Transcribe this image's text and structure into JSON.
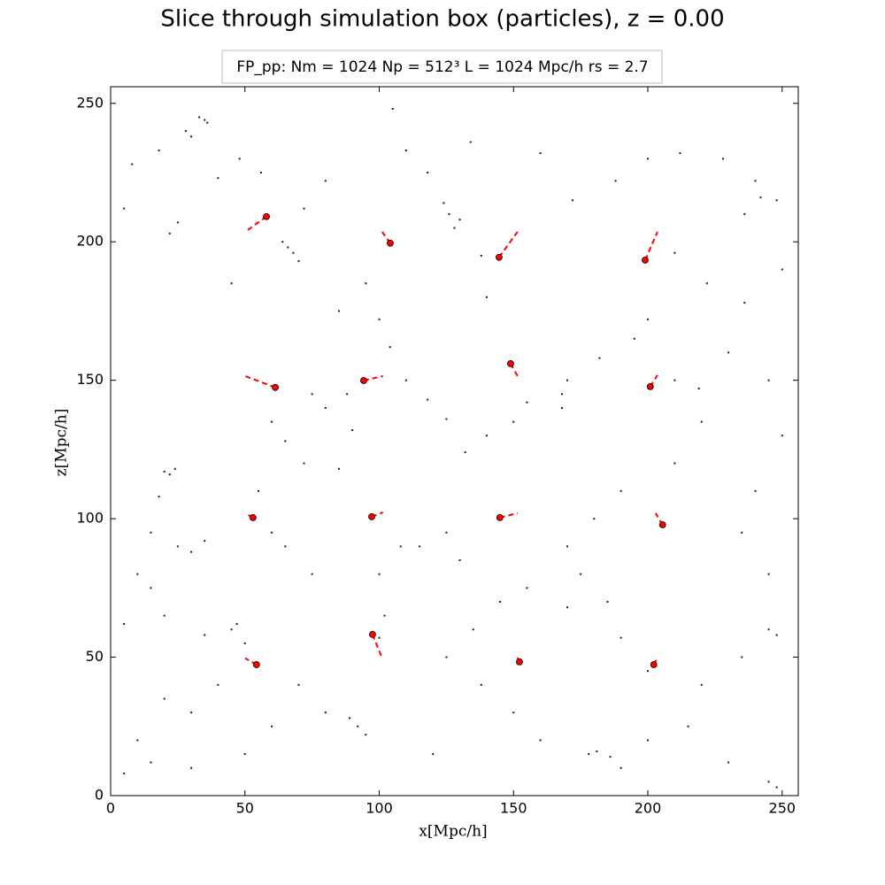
{
  "chart_data": {
    "type": "scatter",
    "title": "Slice through simulation box (particles), z = 0.00",
    "annotation": "FP_pp:  Nm = 1024  Np = 512³   L = 1024 Mpc/h  rs = 2.7",
    "xlabel": "x[Mpc/h]",
    "ylabel": "z[Mpc/h]",
    "xlim": [
      0,
      256
    ],
    "ylim": [
      0,
      256
    ],
    "xticks": [
      0,
      50,
      100,
      150,
      200,
      250
    ],
    "yticks": [
      0,
      50,
      100,
      150,
      200,
      250
    ],
    "grid": false,
    "series": [
      {
        "color": "#1a1a40",
        "x": [
          35,
          33,
          36,
          28,
          30,
          18,
          8,
          5,
          22,
          25,
          66,
          64,
          68,
          70,
          72,
          80,
          56,
          48,
          40,
          45,
          128,
          126,
          130,
          124,
          118,
          110,
          105,
          138,
          140,
          134,
          160,
          172,
          188,
          200,
          212,
          228,
          240,
          242,
          236,
          248,
          250,
          236,
          222,
          210,
          200,
          195,
          182,
          170,
          168,
          168,
          155,
          150,
          140,
          132,
          125,
          118,
          110,
          104,
          100,
          95,
          85,
          75,
          80,
          88,
          90,
          85,
          72,
          65,
          60,
          55,
          20,
          22,
          24,
          18,
          15,
          25,
          30,
          35,
          10,
          15,
          5,
          20,
          35,
          45,
          47,
          50,
          40,
          30,
          20,
          10,
          5,
          15,
          30,
          50,
          60,
          70,
          80,
          89,
          92,
          95,
          100,
          102,
          100,
          108,
          115,
          125,
          130,
          138,
          135,
          145,
          155,
          170,
          175,
          170,
          180,
          190,
          205,
          210,
          220,
          210,
          219,
          230,
          245,
          250,
          240,
          235,
          245,
          245,
          248,
          235,
          220,
          200,
          190,
          185,
          181,
          186,
          178,
          190,
          200,
          215,
          230,
          248,
          245,
          160,
          150,
          120,
          125,
          60,
          65,
          75
        ],
        "values": [
          244,
          245,
          243,
          240,
          238,
          233,
          228,
          212,
          203,
          207,
          198,
          200,
          196,
          193,
          212,
          222,
          225,
          230,
          223,
          185,
          205,
          210,
          208,
          214,
          225,
          233,
          248,
          195,
          180,
          236,
          232,
          215,
          222,
          230,
          232,
          230,
          222,
          216,
          210,
          215,
          190,
          178,
          185,
          196,
          172,
          165,
          158,
          150,
          145,
          140,
          142,
          135,
          130,
          124,
          136,
          143,
          150,
          162,
          172,
          185,
          175,
          145,
          140,
          145,
          132,
          118,
          120,
          128,
          135,
          110,
          117,
          116,
          118,
          108,
          95,
          90,
          88,
          92,
          80,
          75,
          62,
          65,
          58,
          60,
          62,
          55,
          40,
          30,
          35,
          20,
          8,
          12,
          10,
          15,
          25,
          40,
          30,
          28,
          25,
          22,
          57,
          65,
          80,
          90,
          90,
          95,
          85,
          40,
          60,
          70,
          75,
          68,
          80,
          90,
          100,
          110,
          98,
          120,
          135,
          150,
          147,
          160,
          150,
          130,
          110,
          95,
          80,
          60,
          58,
          50,
          40,
          45,
          57,
          70,
          16,
          14,
          15,
          10,
          20,
          25,
          12,
          3,
          5,
          20,
          30,
          15,
          50,
          95,
          90,
          80
        ]
      },
      {
        "color": "#ff0000",
        "x": [
          58.0,
          104.1,
          144.6,
          199.0,
          148.9,
          61.3,
          94.2,
          200.9,
          53.0,
          97.2,
          144.9,
          205.5,
          97.5,
          54.3,
          152.2,
          202.2
        ],
        "values": [
          209.1,
          199.5,
          194.4,
          193.4,
          156.0,
          147.4,
          149.9,
          147.7,
          100.4,
          100.7,
          100.4,
          97.8,
          58.2,
          47.3,
          48.3,
          47.3
        ]
      }
    ],
    "track_color": "#ff0000",
    "tracks": [
      {
        "x": [
          58.0,
          50.1
        ],
        "values": [
          209.1,
          203.6
        ]
      },
      {
        "x": [
          104.1,
          101.1
        ],
        "values": [
          199.5,
          203.6
        ]
      },
      {
        "x": [
          144.6,
          151.5
        ],
        "values": [
          194.4,
          203.6
        ]
      },
      {
        "x": [
          199.0,
          203.6
        ],
        "values": [
          193.4,
          203.6
        ]
      },
      {
        "x": [
          148.9,
          151.5
        ],
        "values": [
          156.0,
          151.5
        ]
      },
      {
        "x": [
          61.3,
          50.1
        ],
        "values": [
          147.4,
          151.5
        ]
      },
      {
        "x": [
          94.2,
          101.4
        ],
        "values": [
          149.9,
          151.5
        ]
      },
      {
        "x": [
          200.9,
          203.6
        ],
        "values": [
          147.7,
          151.9
        ]
      },
      {
        "x": [
          53.0,
          50.1
        ],
        "values": [
          100.4,
          102.0
        ]
      },
      {
        "x": [
          97.2,
          101.4
        ],
        "values": [
          100.7,
          102.3
        ]
      },
      {
        "x": [
          144.9,
          151.5
        ],
        "values": [
          100.4,
          102.0
        ]
      },
      {
        "x": [
          205.5,
          202.9
        ],
        "values": [
          97.8,
          102.0
        ]
      },
      {
        "x": [
          97.5,
          101.1
        ],
        "values": [
          58.2,
          49.6
        ]
      },
      {
        "x": [
          54.3,
          50.1
        ],
        "values": [
          47.3,
          49.6
        ]
      },
      {
        "x": [
          152.2,
          151.5
        ],
        "values": [
          48.3,
          49.9
        ]
      },
      {
        "x": [
          202.2,
          203.6
        ],
        "values": [
          47.3,
          49.9
        ]
      }
    ]
  }
}
